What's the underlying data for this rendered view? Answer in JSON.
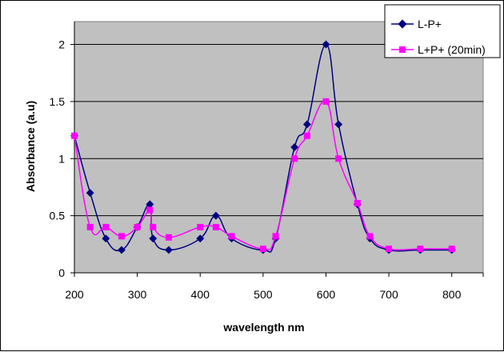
{
  "chart_data": {
    "type": "line",
    "title": "",
    "xlabel": "wavelength nm",
    "ylabel": "Absorbance (a.u)",
    "xlim": [
      200,
      850
    ],
    "ylim": [
      0,
      2.2
    ],
    "xticks": [
      200,
      300,
      400,
      500,
      600,
      700,
      800
    ],
    "yticks": [
      0,
      0.5,
      1,
      1.5,
      2
    ],
    "xtick_labels": [
      "200",
      "300",
      "400",
      "500",
      "600",
      "700",
      "800"
    ],
    "ytick_labels": [
      "0",
      "0.5",
      "1",
      "1.5",
      "2"
    ],
    "grid": "horizontal",
    "plot_background": "#c0c0c0",
    "legend_position": "top-right",
    "series": [
      {
        "name": "L-P+",
        "color": "#000080",
        "marker": "diamond",
        "x": [
          200,
          225,
          250,
          275,
          300,
          320,
          325,
          350,
          400,
          425,
          450,
          500,
          520,
          550,
          570,
          600,
          620,
          650,
          670,
          700,
          750,
          800
        ],
        "y": [
          1.2,
          0.7,
          0.3,
          0.2,
          0.4,
          0.6,
          0.3,
          0.2,
          0.3,
          0.5,
          0.3,
          0.2,
          0.3,
          1.1,
          1.3,
          2.0,
          1.3,
          0.6,
          0.3,
          0.2,
          0.2,
          0.2
        ]
      },
      {
        "name": "L+P+ (20min)",
        "color": "#ff00ff",
        "marker": "square",
        "x": [
          200,
          225,
          250,
          275,
          300,
          320,
          325,
          350,
          400,
          425,
          450,
          500,
          520,
          550,
          570,
          600,
          620,
          650,
          670,
          700,
          750,
          800
        ],
        "y": [
          1.2,
          0.4,
          0.4,
          0.32,
          0.4,
          0.55,
          0.4,
          0.31,
          0.4,
          0.4,
          0.32,
          0.21,
          0.32,
          1.0,
          1.2,
          1.5,
          1.0,
          0.61,
          0.32,
          0.21,
          0.21,
          0.21
        ]
      }
    ]
  }
}
